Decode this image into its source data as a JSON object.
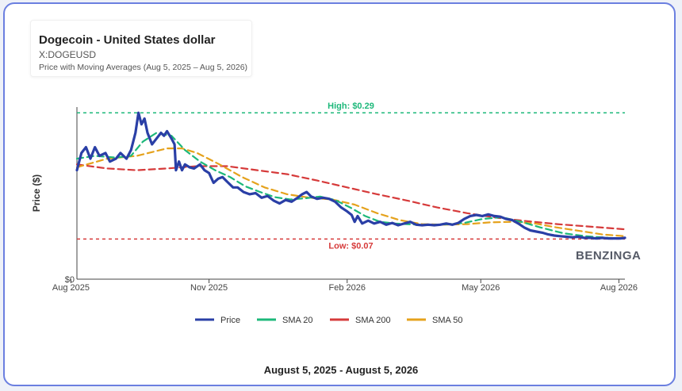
{
  "header": {
    "title": "Dogecoin - United States dollar",
    "symbol": "X:DOGEUSD",
    "subtitle": "Price with Moving Averages (Aug 5, 2025 – Aug 5, 2026)"
  },
  "footer": {
    "range": "August 5, 2025 - August 5, 2026"
  },
  "brand": {
    "label": "BENZINGA"
  },
  "colors": {
    "price": "#2a3fa6",
    "sma20": "#1db87a",
    "sma200": "#d63a3a",
    "sma50": "#e5a21c",
    "high": "#1db87a",
    "low": "#d63a3a",
    "axis": "#444444",
    "border": "#6b7fe0"
  },
  "chart_data": {
    "type": "line",
    "ylabel": "Price ($)",
    "xlabel": "",
    "ylim": [
      0,
      0.3
    ],
    "xlim": [
      "2025-08-05",
      "2026-08-05"
    ],
    "y_ticks": [
      {
        "value": 0,
        "label": "$0"
      }
    ],
    "x_ticks": [
      {
        "date": "2025-08-01",
        "label": "Aug 2025"
      },
      {
        "date": "2025-11-01",
        "label": "Nov 2025"
      },
      {
        "date": "2026-02-01",
        "label": "Feb 2026"
      },
      {
        "date": "2026-05-01",
        "label": "May 2026"
      },
      {
        "date": "2026-08-01",
        "label": "Aug 2026"
      }
    ],
    "grid": false,
    "legend_position": "bottom",
    "reference_lines": [
      {
        "name": "high",
        "label": "High: $0.29",
        "value": 0.29
      },
      {
        "name": "low",
        "label": "Low: $0.07",
        "value": 0.07
      }
    ],
    "series": [
      {
        "name": "Price",
        "key": "price",
        "points": [
          [
            "2025-08-05",
            0.19
          ],
          [
            "2025-08-08",
            0.22
          ],
          [
            "2025-08-11",
            0.23
          ],
          [
            "2025-08-14",
            0.21
          ],
          [
            "2025-08-17",
            0.23
          ],
          [
            "2025-08-20",
            0.215
          ],
          [
            "2025-08-24",
            0.22
          ],
          [
            "2025-08-27",
            0.205
          ],
          [
            "2025-08-31",
            0.21
          ],
          [
            "2025-09-03",
            0.22
          ],
          [
            "2025-09-07",
            0.21
          ],
          [
            "2025-09-10",
            0.225
          ],
          [
            "2025-09-13",
            0.255
          ],
          [
            "2025-09-15",
            0.29
          ],
          [
            "2025-09-17",
            0.27
          ],
          [
            "2025-09-19",
            0.28
          ],
          [
            "2025-09-21",
            0.255
          ],
          [
            "2025-09-24",
            0.235
          ],
          [
            "2025-09-27",
            0.245
          ],
          [
            "2025-09-30",
            0.255
          ],
          [
            "2025-10-02",
            0.25
          ],
          [
            "2025-10-04",
            0.258
          ],
          [
            "2025-10-07",
            0.245
          ],
          [
            "2025-10-09",
            0.235
          ],
          [
            "2025-10-10",
            0.19
          ],
          [
            "2025-10-12",
            0.205
          ],
          [
            "2025-10-14",
            0.19
          ],
          [
            "2025-10-16",
            0.2
          ],
          [
            "2025-10-19",
            0.195
          ],
          [
            "2025-10-22",
            0.193
          ],
          [
            "2025-10-26",
            0.2
          ],
          [
            "2025-10-29",
            0.19
          ],
          [
            "2025-11-01",
            0.185
          ],
          [
            "2025-11-04",
            0.168
          ],
          [
            "2025-11-07",
            0.175
          ],
          [
            "2025-11-10",
            0.178
          ],
          [
            "2025-11-13",
            0.17
          ],
          [
            "2025-11-17",
            0.16
          ],
          [
            "2025-11-20",
            0.16
          ],
          [
            "2025-11-24",
            0.152
          ],
          [
            "2025-11-28",
            0.148
          ],
          [
            "2025-12-02",
            0.15
          ],
          [
            "2025-12-06",
            0.142
          ],
          [
            "2025-12-10",
            0.145
          ],
          [
            "2025-12-14",
            0.137
          ],
          [
            "2025-12-18",
            0.132
          ],
          [
            "2025-12-22",
            0.138
          ],
          [
            "2025-12-26",
            0.135
          ],
          [
            "2025-12-30",
            0.142
          ],
          [
            "2026-01-02",
            0.148
          ],
          [
            "2026-01-05",
            0.152
          ],
          [
            "2026-01-08",
            0.144
          ],
          [
            "2026-01-12",
            0.14
          ],
          [
            "2026-01-16",
            0.142
          ],
          [
            "2026-01-20",
            0.14
          ],
          [
            "2026-01-24",
            0.135
          ],
          [
            "2026-01-28",
            0.125
          ],
          [
            "2026-02-01",
            0.118
          ],
          [
            "2026-02-04",
            0.112
          ],
          [
            "2026-02-06",
            0.1
          ],
          [
            "2026-02-08",
            0.11
          ],
          [
            "2026-02-11",
            0.097
          ],
          [
            "2026-02-15",
            0.102
          ],
          [
            "2026-02-19",
            0.097
          ],
          [
            "2026-02-23",
            0.1
          ],
          [
            "2026-02-27",
            0.095
          ],
          [
            "2026-03-03",
            0.098
          ],
          [
            "2026-03-07",
            0.094
          ],
          [
            "2026-03-11",
            0.097
          ],
          [
            "2026-03-15",
            0.1
          ],
          [
            "2026-03-19",
            0.095
          ],
          [
            "2026-03-23",
            0.094
          ],
          [
            "2026-03-27",
            0.095
          ],
          [
            "2026-03-31",
            0.094
          ],
          [
            "2026-04-04",
            0.095
          ],
          [
            "2026-04-08",
            0.097
          ],
          [
            "2026-04-12",
            0.095
          ],
          [
            "2026-04-16",
            0.098
          ],
          [
            "2026-04-20",
            0.105
          ],
          [
            "2026-04-24",
            0.11
          ],
          [
            "2026-04-28",
            0.112
          ],
          [
            "2026-05-02",
            0.11
          ],
          [
            "2026-05-06",
            0.113
          ],
          [
            "2026-05-10",
            0.11
          ],
          [
            "2026-05-14",
            0.109
          ],
          [
            "2026-05-18",
            0.105
          ],
          [
            "2026-05-22",
            0.103
          ],
          [
            "2026-05-26",
            0.097
          ],
          [
            "2026-05-30",
            0.09
          ],
          [
            "2026-06-03",
            0.085
          ],
          [
            "2026-06-07",
            0.083
          ],
          [
            "2026-06-11",
            0.081
          ],
          [
            "2026-06-15",
            0.078
          ],
          [
            "2026-06-19",
            0.076
          ],
          [
            "2026-06-23",
            0.075
          ],
          [
            "2026-06-27",
            0.074
          ],
          [
            "2026-07-01",
            0.073
          ],
          [
            "2026-07-05",
            0.074
          ],
          [
            "2026-07-09",
            0.072
          ],
          [
            "2026-07-13",
            0.072
          ],
          [
            "2026-07-17",
            0.071
          ],
          [
            "2026-07-21",
            0.072
          ],
          [
            "2026-07-25",
            0.071
          ],
          [
            "2026-07-29",
            0.071
          ],
          [
            "2026-08-02",
            0.071
          ],
          [
            "2026-08-05",
            0.072
          ]
        ]
      },
      {
        "name": "SMA 20",
        "key": "sma20",
        "points": [
          [
            "2025-08-05",
            0.21
          ],
          [
            "2025-08-17",
            0.215
          ],
          [
            "2025-08-31",
            0.212
          ],
          [
            "2025-09-10",
            0.215
          ],
          [
            "2025-09-18",
            0.24
          ],
          [
            "2025-09-27",
            0.255
          ],
          [
            "2025-10-07",
            0.25
          ],
          [
            "2025-10-16",
            0.225
          ],
          [
            "2025-10-26",
            0.205
          ],
          [
            "2025-11-05",
            0.19
          ],
          [
            "2025-11-15",
            0.178
          ],
          [
            "2025-11-25",
            0.162
          ],
          [
            "2025-12-05",
            0.152
          ],
          [
            "2025-12-15",
            0.143
          ],
          [
            "2025-12-25",
            0.139
          ],
          [
            "2026-01-04",
            0.141
          ],
          [
            "2026-01-14",
            0.144
          ],
          [
            "2026-01-24",
            0.138
          ],
          [
            "2026-02-03",
            0.125
          ],
          [
            "2026-02-13",
            0.11
          ],
          [
            "2026-02-23",
            0.1
          ],
          [
            "2026-03-05",
            0.097
          ],
          [
            "2026-03-20",
            0.095
          ],
          [
            "2026-04-05",
            0.095
          ],
          [
            "2026-04-20",
            0.098
          ],
          [
            "2026-05-02",
            0.105
          ],
          [
            "2026-05-15",
            0.108
          ],
          [
            "2026-05-28",
            0.1
          ],
          [
            "2026-06-10",
            0.09
          ],
          [
            "2026-06-25",
            0.08
          ],
          [
            "2026-07-10",
            0.075
          ],
          [
            "2026-07-25",
            0.072
          ],
          [
            "2026-08-05",
            0.071
          ]
        ]
      },
      {
        "name": "SMA 200",
        "key": "sma200",
        "points": [
          [
            "2025-08-05",
            0.2
          ],
          [
            "2025-08-25",
            0.193
          ],
          [
            "2025-09-14",
            0.19
          ],
          [
            "2025-10-04",
            0.193
          ],
          [
            "2025-10-24",
            0.197
          ],
          [
            "2025-11-13",
            0.197
          ],
          [
            "2025-12-03",
            0.19
          ],
          [
            "2025-12-23",
            0.183
          ],
          [
            "2026-01-12",
            0.172
          ],
          [
            "2026-02-01",
            0.16
          ],
          [
            "2026-02-21",
            0.148
          ],
          [
            "2026-03-13",
            0.137
          ],
          [
            "2026-04-02",
            0.125
          ],
          [
            "2026-04-22",
            0.115
          ],
          [
            "2026-05-12",
            0.107
          ],
          [
            "2026-06-01",
            0.101
          ],
          [
            "2026-06-21",
            0.096
          ],
          [
            "2026-07-11",
            0.092
          ],
          [
            "2026-08-05",
            0.087
          ]
        ]
      },
      {
        "name": "SMA 50",
        "key": "sma50",
        "points": [
          [
            "2025-08-05",
            0.195
          ],
          [
            "2025-08-25",
            0.21
          ],
          [
            "2025-09-14",
            0.215
          ],
          [
            "2025-10-04",
            0.228
          ],
          [
            "2025-10-14",
            0.228
          ],
          [
            "2025-10-24",
            0.22
          ],
          [
            "2025-11-08",
            0.2
          ],
          [
            "2025-11-23",
            0.178
          ],
          [
            "2025-12-08",
            0.16
          ],
          [
            "2025-12-23",
            0.148
          ],
          [
            "2026-01-07",
            0.142
          ],
          [
            "2026-01-22",
            0.139
          ],
          [
            "2026-02-06",
            0.13
          ],
          [
            "2026-02-21",
            0.115
          ],
          [
            "2026-03-08",
            0.103
          ],
          [
            "2026-03-23",
            0.096
          ],
          [
            "2026-04-07",
            0.095
          ],
          [
            "2026-04-22",
            0.096
          ],
          [
            "2026-05-07",
            0.099
          ],
          [
            "2026-05-22",
            0.1
          ],
          [
            "2026-06-06",
            0.097
          ],
          [
            "2026-06-21",
            0.09
          ],
          [
            "2026-07-06",
            0.084
          ],
          [
            "2026-07-21",
            0.078
          ],
          [
            "2026-08-05",
            0.075
          ]
        ]
      }
    ]
  }
}
